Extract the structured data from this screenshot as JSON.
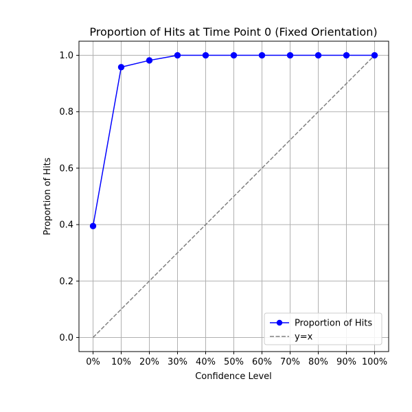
{
  "chart_data": {
    "type": "line",
    "title": "Proportion of Hits at Time Point 0 (Fixed Orientation)",
    "xlabel": "Confidence Level",
    "ylabel": "Proportion of Hits",
    "categories": [
      "0%",
      "10%",
      "20%",
      "30%",
      "40%",
      "50%",
      "60%",
      "70%",
      "80%",
      "90%",
      "100%"
    ],
    "x": [
      0.0,
      0.1,
      0.2,
      0.3,
      0.4,
      0.5,
      0.6,
      0.7,
      0.8,
      0.9,
      1.0
    ],
    "xlim": [
      -0.05,
      1.05
    ],
    "ylim": [
      -0.05,
      1.05
    ],
    "yticks": [
      0.0,
      0.2,
      0.4,
      0.6,
      0.8,
      1.0
    ],
    "ytick_labels": [
      "0.0",
      "0.2",
      "0.4",
      "0.6",
      "0.8",
      "1.0"
    ],
    "grid": true,
    "legend_position": "lower-right",
    "series": [
      {
        "name": "Proportion of Hits",
        "values": [
          0.395,
          0.958,
          0.982,
          1.0,
          1.0,
          1.0,
          1.0,
          1.0,
          1.0,
          1.0,
          1.0
        ],
        "color": "#0000ff",
        "style": "solid",
        "marker": "circle"
      },
      {
        "name": "y=x",
        "values": [
          0.0,
          0.1,
          0.2,
          0.3,
          0.4,
          0.5,
          0.6,
          0.7,
          0.8,
          0.9,
          1.0
        ],
        "color": "#808080",
        "style": "dashed",
        "marker": "none"
      }
    ]
  }
}
